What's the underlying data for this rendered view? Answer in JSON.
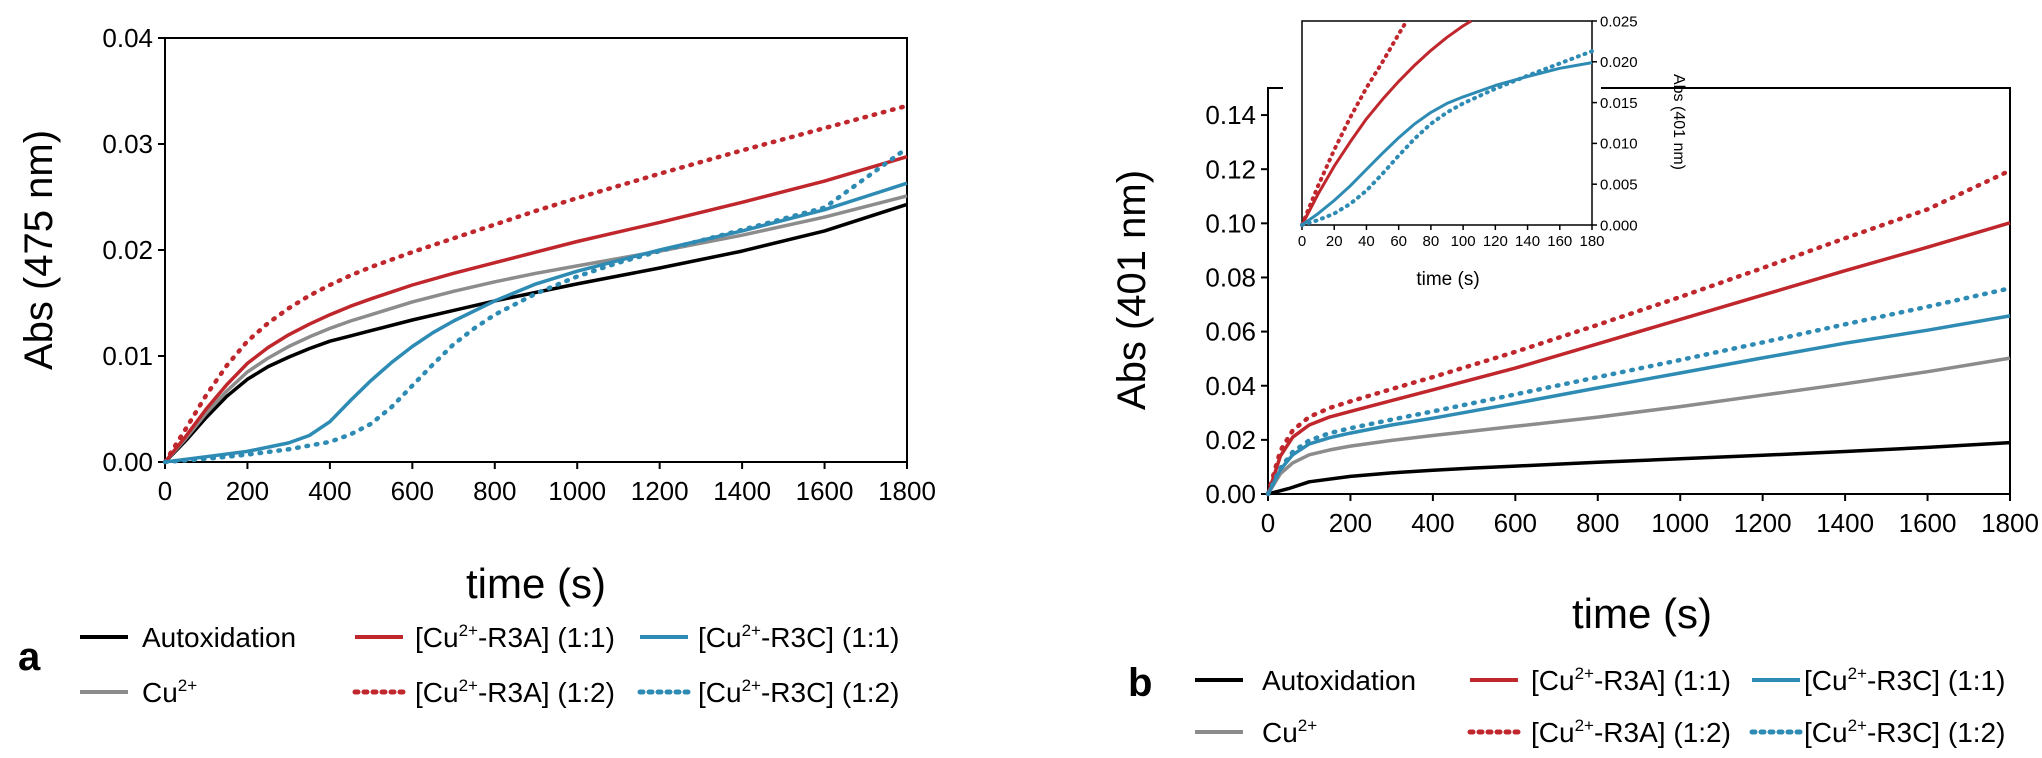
{
  "chart_data": [
    {
      "panel_label": "a",
      "type": "line",
      "xlabel": "time (s)",
      "ylabel": "Abs (475 nm)",
      "xlim": [
        0,
        1800
      ],
      "ylim": [
        0,
        0.04
      ],
      "x_ticks": [
        "0",
        "200",
        "400",
        "600",
        "800",
        "1000",
        "1200",
        "1400",
        "1600",
        "1800"
      ],
      "x_tick_values": [
        0,
        200,
        400,
        600,
        800,
        1000,
        1200,
        1400,
        1600,
        1800
      ],
      "y_ticks": [
        "0.00",
        "0.01",
        "0.02",
        "0.03",
        "0.04"
      ],
      "y_tick_values": [
        0,
        0.01,
        0.02,
        0.03,
        0.04
      ],
      "series": [
        {
          "key": "auto",
          "x": [
            0,
            50,
            100,
            150,
            200,
            250,
            300,
            350,
            400,
            450,
            500,
            600,
            700,
            800,
            900,
            1000,
            1200,
            1400,
            1600,
            1800
          ],
          "y": [
            0,
            0.002,
            0.0042,
            0.0062,
            0.0078,
            0.009,
            0.0099,
            0.0107,
            0.0114,
            0.0119,
            0.0124,
            0.0134,
            0.0143,
            0.0152,
            0.016,
            0.0168,
            0.0183,
            0.0199,
            0.0218,
            0.0243
          ]
        },
        {
          "key": "cu",
          "x": [
            0,
            50,
            100,
            150,
            200,
            250,
            300,
            350,
            400,
            450,
            500,
            600,
            700,
            800,
            900,
            1000,
            1200,
            1400,
            1600,
            1800
          ],
          "y": [
            0,
            0.0022,
            0.0046,
            0.0067,
            0.0085,
            0.0098,
            0.0109,
            0.0118,
            0.0126,
            0.0133,
            0.0139,
            0.0151,
            0.0161,
            0.017,
            0.0178,
            0.0185,
            0.0199,
            0.0214,
            0.0231,
            0.0251
          ]
        },
        {
          "key": "r3a11",
          "x": [
            0,
            50,
            100,
            150,
            200,
            250,
            300,
            350,
            400,
            450,
            500,
            600,
            700,
            800,
            900,
            1000,
            1200,
            1400,
            1600,
            1800
          ],
          "y": [
            0,
            0.0024,
            0.005,
            0.0073,
            0.0093,
            0.0108,
            0.012,
            0.013,
            0.0139,
            0.0147,
            0.0154,
            0.0167,
            0.0178,
            0.0188,
            0.0198,
            0.0208,
            0.0226,
            0.0245,
            0.0265,
            0.0288
          ]
        },
        {
          "key": "r3c11",
          "x": [
            0,
            100,
            200,
            300,
            350,
            400,
            450,
            500,
            550,
            600,
            650,
            700,
            800,
            900,
            1000,
            1100,
            1200,
            1400,
            1600,
            1800
          ],
          "y": [
            0,
            0.0005,
            0.001,
            0.0018,
            0.0025,
            0.0038,
            0.0058,
            0.0077,
            0.0094,
            0.0109,
            0.0122,
            0.0133,
            0.0152,
            0.0168,
            0.018,
            0.019,
            0.02,
            0.0218,
            0.0238,
            0.0263
          ]
        },
        {
          "key": "r3a12",
          "x": [
            0,
            50,
            100,
            150,
            200,
            250,
            300,
            350,
            400,
            450,
            500,
            600,
            700,
            800,
            900,
            1000,
            1200,
            1400,
            1600,
            1800
          ],
          "y": [
            0,
            0.0031,
            0.0063,
            0.0091,
            0.0114,
            0.0131,
            0.0145,
            0.0157,
            0.0167,
            0.0176,
            0.0184,
            0.0198,
            0.0211,
            0.0224,
            0.0237,
            0.0249,
            0.0272,
            0.0294,
            0.0315,
            0.0336
          ]
        },
        {
          "key": "r3c12",
          "x": [
            0,
            100,
            200,
            300,
            400,
            450,
            500,
            550,
            600,
            650,
            700,
            750,
            800,
            900,
            1000,
            1100,
            1200,
            1400,
            1600,
            1800
          ],
          "y": [
            0,
            0.0003,
            0.0007,
            0.0012,
            0.0019,
            0.0026,
            0.0036,
            0.0052,
            0.0072,
            0.0092,
            0.0111,
            0.0126,
            0.0139,
            0.0159,
            0.0175,
            0.0188,
            0.0199,
            0.0219,
            0.024,
            0.0296
          ]
        }
      ],
      "legend": {
        "autoxidation": "Autoxidation",
        "cu": "Cu",
        "cu_sup": "2+",
        "r3a11_pre": "[Cu",
        "r3a11_sup": "2+",
        "r3a11_post": "-R3A] (1:1)",
        "r3a12_pre": "[Cu",
        "r3a12_sup": "2+",
        "r3a12_post": "-R3A] (1:2)",
        "r3c11_pre": "[Cu",
        "r3c11_sup": "2+",
        "r3c11_post": "-R3C] (1:1)",
        "r3c12_pre": "[Cu",
        "r3c12_sup": "2+",
        "r3c12_post": "-R3C] (1:2)"
      }
    },
    {
      "panel_label": "b",
      "type": "line",
      "xlabel": "time (s)",
      "ylabel": "Abs (401 nm)",
      "xlim": [
        0,
        1800
      ],
      "ylim": [
        0,
        0.15
      ],
      "x_ticks": [
        "0",
        "200",
        "400",
        "600",
        "800",
        "1000",
        "1200",
        "1400",
        "1600",
        "1800"
      ],
      "x_tick_values": [
        0,
        200,
        400,
        600,
        800,
        1000,
        1200,
        1400,
        1600,
        1800
      ],
      "y_ticks": [
        "0.00",
        "0.02",
        "0.04",
        "0.06",
        "0.08",
        "0.10",
        "0.12",
        "0.14"
      ],
      "y_tick_values": [
        0,
        0.02,
        0.04,
        0.06,
        0.08,
        0.1,
        0.12,
        0.14
      ],
      "series": [
        {
          "key": "auto",
          "x": [
            0,
            50,
            100,
            200,
            300,
            400,
            500,
            600,
            800,
            1000,
            1200,
            1400,
            1600,
            1800
          ],
          "y": [
            0,
            0.002,
            0.0045,
            0.0065,
            0.0078,
            0.0088,
            0.0096,
            0.0103,
            0.0117,
            0.013,
            0.0143,
            0.0157,
            0.0172,
            0.019
          ]
        },
        {
          "key": "cu",
          "x": [
            0,
            30,
            60,
            100,
            150,
            200,
            300,
            400,
            600,
            800,
            1000,
            1200,
            1400,
            1600,
            1800
          ],
          "y": [
            0,
            0.0075,
            0.0115,
            0.0145,
            0.0163,
            0.0177,
            0.0198,
            0.0216,
            0.025,
            0.0284,
            0.0323,
            0.0365,
            0.0407,
            0.0452,
            0.0502
          ]
        },
        {
          "key": "r3a11",
          "x": [
            0,
            30,
            60,
            100,
            150,
            200,
            300,
            400,
            600,
            800,
            1000,
            1200,
            1400,
            1600,
            1800
          ],
          "y": [
            0,
            0.014,
            0.021,
            0.0255,
            0.0285,
            0.0305,
            0.0345,
            0.0385,
            0.0465,
            0.0555,
            0.0645,
            0.0735,
            0.0825,
            0.0912,
            0.1002
          ]
        },
        {
          "key": "r3c11",
          "x": [
            0,
            30,
            60,
            100,
            150,
            200,
            300,
            400,
            600,
            800,
            1000,
            1200,
            1400,
            1600,
            1800
          ],
          "y": [
            0,
            0.009,
            0.0145,
            0.0185,
            0.0208,
            0.0225,
            0.0255,
            0.028,
            0.0335,
            0.0392,
            0.0447,
            0.0503,
            0.0557,
            0.0605,
            0.0658
          ]
        },
        {
          "key": "r3a12",
          "x": [
            0,
            30,
            60,
            100,
            150,
            200,
            300,
            400,
            600,
            800,
            1000,
            1200,
            1400,
            1600,
            1800
          ],
          "y": [
            0,
            0.016,
            0.0235,
            0.0285,
            0.0318,
            0.0342,
            0.0388,
            0.0432,
            0.0525,
            0.0625,
            0.0728,
            0.0835,
            0.0945,
            0.1052,
            0.1195
          ]
        },
        {
          "key": "r3c12",
          "x": [
            0,
            30,
            60,
            100,
            150,
            200,
            300,
            400,
            600,
            800,
            1000,
            1200,
            1400,
            1600,
            1800
          ],
          "y": [
            0,
            0.0095,
            0.0155,
            0.0198,
            0.0225,
            0.0243,
            0.0275,
            0.0305,
            0.0368,
            0.0432,
            0.0495,
            0.056,
            0.0627,
            0.0692,
            0.076
          ]
        }
      ],
      "inset": {
        "xlabel": "time (s)",
        "ylabel": "Abs (401 nm)",
        "xlim": [
          0,
          180
        ],
        "ylim": [
          0,
          0.025
        ],
        "x_ticks": [
          "0",
          "20",
          "40",
          "60",
          "80",
          "100",
          "120",
          "140",
          "160",
          "180"
        ],
        "x_tick_values": [
          0,
          20,
          40,
          60,
          80,
          100,
          120,
          140,
          160,
          180
        ],
        "y_ticks": [
          "0.000",
          "0.005",
          "0.010",
          "0.015",
          "0.020",
          "0.025"
        ],
        "y_tick_values": [
          0,
          0.005,
          0.01,
          0.015,
          0.02,
          0.025
        ],
        "series": [
          {
            "key": "r3a12",
            "x": [
              0,
              10,
              20,
              30,
              40,
              50,
              60,
              65
            ],
            "y": [
              0,
              0.0048,
              0.0092,
              0.0132,
              0.0168,
              0.02,
              0.0234,
              0.025
            ]
          },
          {
            "key": "r3a11",
            "x": [
              0,
              10,
              20,
              30,
              40,
              50,
              60,
              70,
              80,
              90,
              100,
              105
            ],
            "y": [
              0,
              0.0038,
              0.0072,
              0.0102,
              0.013,
              0.0154,
              0.0176,
              0.0196,
              0.0214,
              0.023,
              0.0244,
              0.025
            ]
          },
          {
            "key": "r3c11",
            "x": [
              0,
              10,
              20,
              30,
              40,
              50,
              60,
              70,
              80,
              90,
              100,
              120,
              140,
              160,
              180
            ],
            "y": [
              0,
              0.0014,
              0.003,
              0.0048,
              0.0068,
              0.0088,
              0.0107,
              0.0124,
              0.0138,
              0.0149,
              0.0157,
              0.0171,
              0.0182,
              0.0192,
              0.0199
            ]
          },
          {
            "key": "r3c12",
            "x": [
              0,
              10,
              20,
              30,
              40,
              50,
              60,
              70,
              80,
              90,
              100,
              120,
              140,
              160,
              180
            ],
            "y": [
              0,
              0.0006,
              0.0014,
              0.0026,
              0.0042,
              0.0063,
              0.0085,
              0.0106,
              0.0124,
              0.0138,
              0.0149,
              0.0167,
              0.0183,
              0.0198,
              0.0213
            ]
          }
        ]
      },
      "legend": {
        "autoxidation": "Autoxidation",
        "cu": "Cu",
        "cu_sup": "2+",
        "r3a11_pre": "[Cu",
        "r3a11_sup": "2+",
        "r3a11_post": "-R3A] (1:1)",
        "r3a12_pre": "[Cu",
        "r3a12_sup": "2+",
        "r3a12_post": "-R3A] (1:2)",
        "r3c11_pre": "[Cu",
        "r3c11_sup": "2+",
        "r3c11_post": "-R3C] (1:1)",
        "r3c12_pre": "[Cu",
        "r3c12_sup": "2+",
        "r3c12_post": "-R3C] (1:2)"
      }
    }
  ],
  "colors": {
    "auto": "#000000",
    "cu": "#8c8c8c",
    "r3a": "#c0272d",
    "r3c": "#2e8bb4"
  }
}
